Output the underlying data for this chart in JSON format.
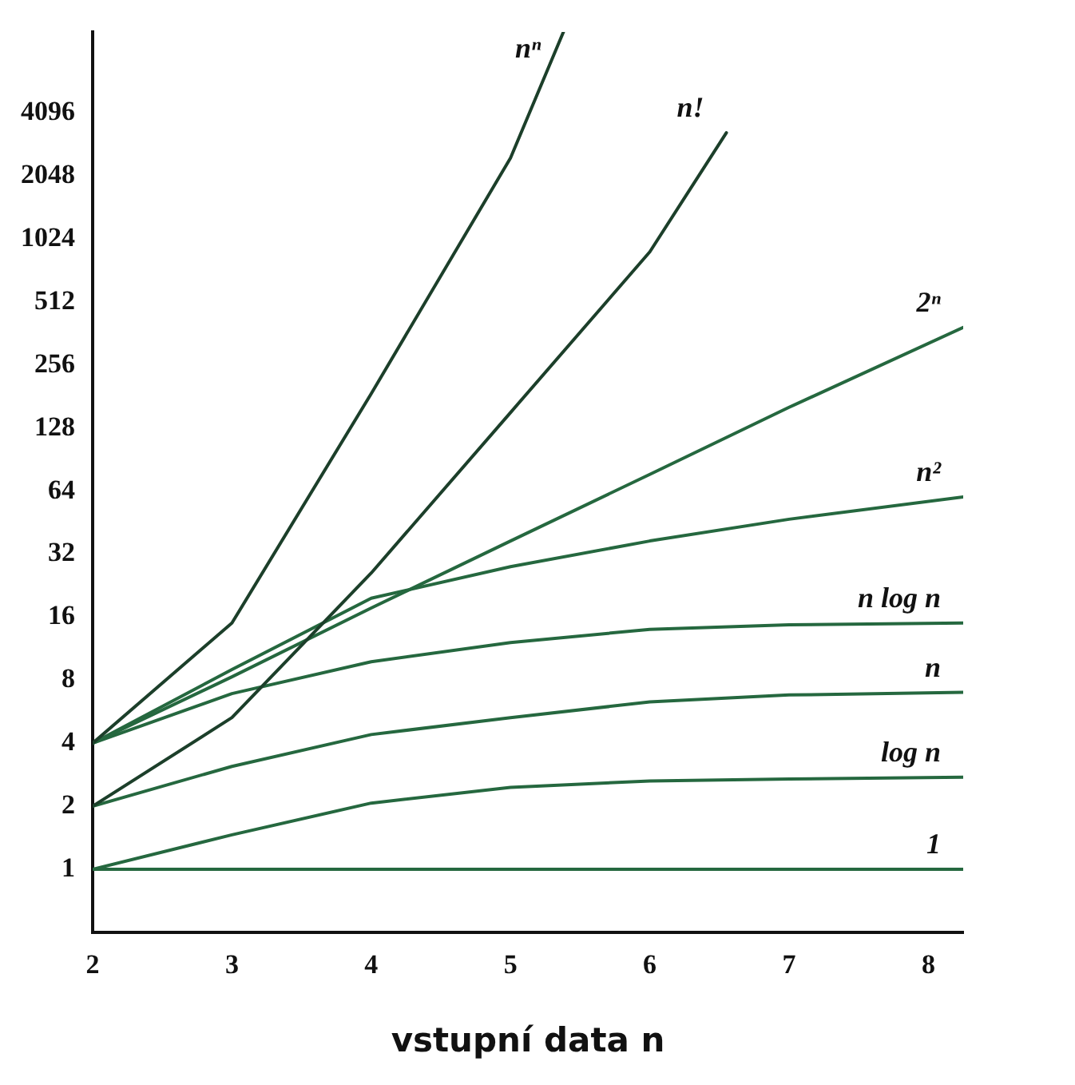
{
  "chart_data": {
    "type": "line",
    "xlabel": "vstupní data n",
    "log": "y",
    "grid": false,
    "legend": false,
    "marker": "none",
    "line_style": "solid",
    "xlim": [
      2,
      8.25
    ],
    "xticks": [
      2,
      3,
      4,
      5,
      6,
      7,
      8
    ],
    "ylim": [
      0.5,
      10000
    ],
    "yticks": [
      1,
      2,
      4,
      8,
      16,
      32,
      64,
      128,
      256,
      512,
      1024,
      2048,
      4096
    ],
    "series": [
      {
        "name": "nⁿ",
        "color": "#1c3f2a",
        "x": [
          2,
          3,
          4,
          5,
          5.38
        ],
        "values": [
          4,
          15,
          187,
          2500,
          10000
        ]
      },
      {
        "name": "n!",
        "color": "#1c3f2a",
        "x": [
          2,
          3,
          4,
          5,
          6,
          6.55
        ],
        "values": [
          2,
          5.3,
          26,
          152,
          890,
          3300
        ]
      },
      {
        "name": "2ⁿ",
        "color": "#25683f",
        "x": [
          2,
          3,
          4,
          5,
          6,
          7,
          8.25
        ],
        "values": [
          4,
          8.3,
          17.7,
          37,
          77,
          161,
          388
        ]
      },
      {
        "name": "n²",
        "color": "#25683f",
        "x": [
          2,
          3,
          4,
          5,
          6,
          7,
          8.25
        ],
        "values": [
          4,
          9,
          19.7,
          27.9,
          37,
          47,
          60
        ]
      },
      {
        "name": "n log n",
        "color": "#25683f",
        "x": [
          2,
          3,
          4,
          5,
          6,
          7,
          8.25
        ],
        "values": [
          4,
          6.9,
          9.8,
          12.1,
          14,
          14.7,
          15
        ]
      },
      {
        "name": "n",
        "color": "#25683f",
        "x": [
          2,
          3,
          4,
          5,
          6,
          7,
          8.25
        ],
        "values": [
          2,
          3.1,
          4.4,
          5.3,
          6.3,
          6.8,
          7
        ]
      },
      {
        "name": "log n",
        "color": "#25683f",
        "x": [
          2,
          3,
          4,
          5,
          6,
          7,
          8.25
        ],
        "values": [
          1,
          1.46,
          2.07,
          2.46,
          2.64,
          2.7,
          2.75
        ]
      },
      {
        "name": "1",
        "color": "#25683f",
        "x": [
          2,
          8.25
        ],
        "values": [
          1,
          1
        ]
      }
    ]
  }
}
